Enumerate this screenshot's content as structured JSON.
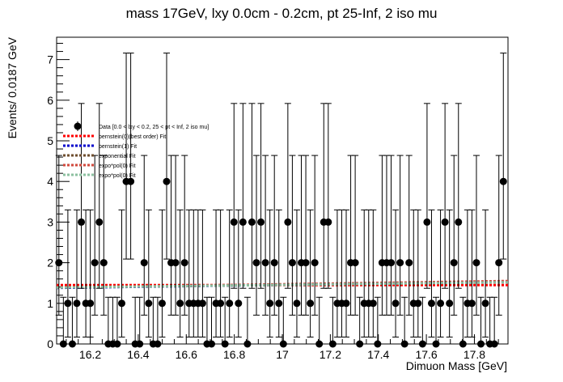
{
  "chart_data": {
    "type": "scatter",
    "title": "mass 17GeV, lxy 0.0cm - 0.2cm, pt 25-Inf, 2 iso mu",
    "xlabel": "Dimuon Mass [GeV]",
    "ylabel": "Events/ 0.0187 GeV",
    "xlim": [
      16.06,
      17.94
    ],
    "ylim": [
      0,
      7.55
    ],
    "x_ticks": [
      16.2,
      16.4,
      16.6,
      16.8,
      17,
      17.2,
      17.4,
      17.6,
      17.8
    ],
    "x_tick_labels": [
      "16.2",
      "16.4",
      "16.6",
      "16.8",
      "17",
      "17.2",
      "17.4",
      "17.6",
      "17.8"
    ],
    "y_ticks": [
      0,
      1,
      2,
      3,
      4,
      5,
      6,
      7
    ],
    "y_tick_labels": [
      "0",
      "1",
      "2",
      "3",
      "4",
      "5",
      "6",
      "7"
    ],
    "grid": false,
    "legend_position": "top-left",
    "series": [
      {
        "name": "Data [0.0 < lxy < 0.2, 25 < pt < Inf, 2 iso mu]",
        "kind": "points-errorbars",
        "color": "#000000",
        "x": [
          16.0694,
          16.0881,
          16.1068,
          16.1255,
          16.1442,
          16.1629,
          16.1816,
          16.2003,
          16.219,
          16.2377,
          16.2564,
          16.2751,
          16.2938,
          16.3125,
          16.3312,
          16.3499,
          16.3686,
          16.3873,
          16.406,
          16.4247,
          16.4434,
          16.4621,
          16.4808,
          16.4995,
          16.5182,
          16.5369,
          16.5556,
          16.5743,
          16.593,
          16.6117,
          16.6304,
          16.6491,
          16.6678,
          16.6865,
          16.7052,
          16.7239,
          16.7426,
          16.7613,
          16.78,
          16.7987,
          16.8174,
          16.8361,
          16.8548,
          16.8735,
          16.8922,
          16.9109,
          16.9296,
          16.9483,
          16.967,
          16.9857,
          17.0044,
          17.0231,
          17.0418,
          17.0605,
          17.0792,
          17.0979,
          17.1166,
          17.1353,
          17.154,
          17.1727,
          17.1914,
          17.2101,
          17.2288,
          17.2475,
          17.2662,
          17.2849,
          17.3036,
          17.3223,
          17.341,
          17.3597,
          17.3784,
          17.3971,
          17.4158,
          17.4345,
          17.4532,
          17.4719,
          17.4906,
          17.5093,
          17.528,
          17.5467,
          17.5654,
          17.5841,
          17.6028,
          17.6215,
          17.6402,
          17.6589,
          17.6776,
          17.6963,
          17.715,
          17.7337,
          17.7524,
          17.7711,
          17.7898,
          17.8085,
          17.8272,
          17.8459,
          17.8646,
          17.8833,
          17.902,
          17.9207
        ],
        "y": [
          2,
          0,
          1,
          0,
          1,
          3,
          1,
          1,
          2,
          3,
          2,
          0,
          0,
          0,
          1,
          4,
          4,
          0,
          0,
          2,
          1,
          0,
          0,
          1,
          4,
          2,
          2,
          1,
          2,
          1,
          1,
          1,
          1,
          0,
          0,
          1,
          1,
          0,
          1,
          3,
          1,
          3,
          0,
          3,
          2,
          3,
          2,
          1,
          2,
          1,
          0,
          3,
          2,
          1,
          2,
          2,
          1,
          2,
          0,
          3,
          3,
          0,
          1,
          1,
          1,
          2,
          2,
          0,
          1,
          1,
          1,
          0,
          2,
          2,
          2,
          1,
          2,
          0,
          2,
          1,
          1,
          0,
          3,
          1,
          0,
          1,
          3,
          1,
          2,
          3,
          0,
          1,
          1,
          2,
          0,
          1,
          0,
          0,
          2,
          4
        ]
      },
      {
        "name": "bernstein(0)(best order) Fit",
        "kind": "line",
        "color": "#ff0000",
        "dash": "dotted",
        "x": [
          16.06,
          17.94
        ],
        "y": [
          1.45,
          1.45
        ]
      },
      {
        "name": "bernstein(1) Fit",
        "kind": "line",
        "color": "#0000cc",
        "dash": "dotted",
        "x": [
          16.06,
          17.94
        ],
        "y": [
          1.38,
          1.53
        ]
      },
      {
        "name": "exponential Fit",
        "kind": "line",
        "color": "#6e4e2e",
        "dash": "dotted",
        "x": [
          16.06,
          17.94
        ],
        "y": [
          1.39,
          1.52
        ]
      },
      {
        "name": "expo*pol(0) Fit",
        "kind": "line",
        "color": "#d14a3e",
        "dash": "dotted",
        "x": [
          16.06,
          17.94
        ],
        "y": [
          1.39,
          1.55
        ]
      },
      {
        "name": "expo*pol(0) Fit",
        "kind": "line",
        "color": "#8cc0a0",
        "dash": "dotted",
        "x": [
          16.06,
          17.94
        ],
        "y": [
          1.39,
          1.52
        ]
      }
    ]
  }
}
